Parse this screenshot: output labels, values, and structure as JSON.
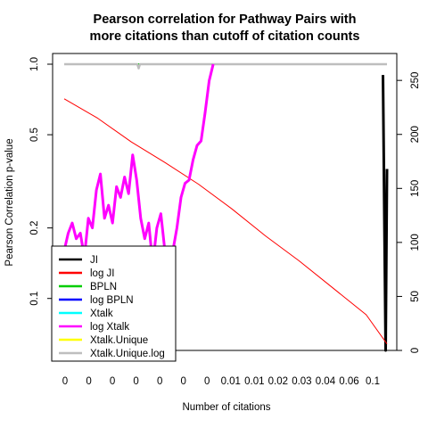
{
  "chart_data": {
    "type": "line",
    "title_line1": "Pearson correlation for Pathway Pairs with",
    "title_line2": "more citations than cutoff of citation counts",
    "xlabel": "Number of citations",
    "ylabel": "Pearson Correlation p-value",
    "y_scale": "log",
    "ylim": [
      0.06,
      1.0
    ],
    "y_ticks": [
      {
        "v": 1.0,
        "label": "1.0"
      },
      {
        "v": 0.5,
        "label": "0.5"
      },
      {
        "v": 0.2,
        "label": "0.2"
      },
      {
        "v": 0.1,
        "label": "0.1"
      }
    ],
    "y2_ticks": [
      0,
      50,
      100,
      150,
      200,
      250
    ],
    "y2lim": [
      0,
      265
    ],
    "x_tick_labels": [
      "0",
      "0",
      "0",
      "0",
      "0",
      "0",
      "0",
      "0.01",
      "0.01",
      "0.02",
      "0.03",
      "0.04",
      "0.06",
      "0.1"
    ],
    "xlim": [
      0,
      1
    ],
    "grid": false,
    "legend": {
      "position": "bottom-left",
      "entries": [
        {
          "label": "JI",
          "color": "#000000"
        },
        {
          "label": "log JI",
          "color": "#ff0000"
        },
        {
          "label": "BPLN",
          "color": "#00cd00"
        },
        {
          "label": "log BPLN",
          "color": "#0000ff"
        },
        {
          "label": "Xtalk",
          "color": "#00ffff"
        },
        {
          "label": "log Xtalk",
          "color": "#ff00ff"
        },
        {
          "label": "Xtalk.Unique",
          "color": "#ffff00"
        },
        {
          "label": "Xtalk.Unique.log",
          "color": "#bebebe"
        }
      ]
    },
    "series": [
      {
        "name": "JI",
        "color": "#000000",
        "axis": "right",
        "x": [
          0.95,
          0.958,
          0.962
        ],
        "y": [
          255,
          0,
          168
        ]
      },
      {
        "name": "log JI",
        "color": "#ff0000",
        "axis": "right",
        "x": [
          0.0,
          0.1,
          0.2,
          0.3,
          0.4,
          0.5,
          0.6,
          0.7,
          0.8,
          0.9,
          0.962
        ],
        "y": [
          233,
          215,
          193,
          174,
          154,
          131,
          106,
          83,
          58,
          33,
          6
        ]
      },
      {
        "name": "BPLN",
        "color": "#00cd00",
        "axis": "left",
        "x": [
          0.0,
          0.962
        ],
        "y": [
          1.0,
          1.0
        ]
      },
      {
        "name": "Xtalk.Unique.log",
        "color": "#bebebe",
        "axis": "left",
        "x": [
          0.0,
          0.218,
          0.222,
          0.226,
          0.962
        ],
        "y": [
          1.0,
          1.0,
          0.96,
          1.0,
          1.0
        ]
      },
      {
        "name": "log Xtalk",
        "color": "#ff00ff",
        "axis": "left",
        "x": [
          0.0,
          0.012,
          0.024,
          0.036,
          0.048,
          0.06,
          0.072,
          0.084,
          0.096,
          0.108,
          0.12,
          0.132,
          0.144,
          0.156,
          0.168,
          0.18,
          0.192,
          0.204,
          0.216,
          0.228,
          0.24,
          0.252,
          0.264,
          0.276,
          0.288,
          0.3,
          0.312,
          0.324,
          0.336,
          0.348,
          0.36,
          0.372,
          0.384,
          0.396,
          0.408,
          0.42,
          0.432,
          0.444
        ],
        "y": [
          0.16,
          0.19,
          0.21,
          0.18,
          0.19,
          0.15,
          0.22,
          0.2,
          0.29,
          0.34,
          0.22,
          0.25,
          0.21,
          0.3,
          0.27,
          0.33,
          0.28,
          0.41,
          0.32,
          0.22,
          0.18,
          0.21,
          0.14,
          0.2,
          0.23,
          0.16,
          0.13,
          0.16,
          0.2,
          0.27,
          0.31,
          0.32,
          0.39,
          0.45,
          0.47,
          0.62,
          0.85,
          1.0
        ]
      }
    ]
  }
}
